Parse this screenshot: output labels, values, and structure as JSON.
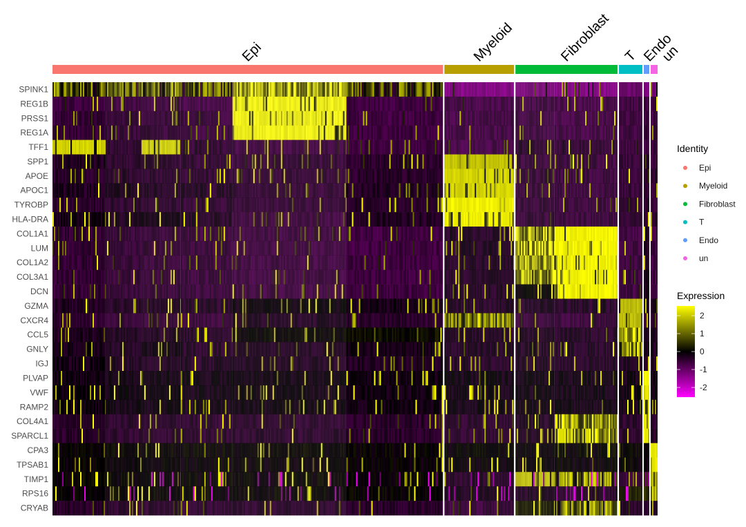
{
  "chart_data": {
    "type": "heatmap",
    "title": "",
    "genes": [
      "SPINK1",
      "REG1B",
      "PRSS1",
      "REG1A",
      "TFF1",
      "SPP1",
      "APOE",
      "APOC1",
      "TYROBP",
      "HLA-DRA",
      "COL1A1",
      "LUM",
      "COL1A2",
      "COL3A1",
      "DCN",
      "GZMA",
      "CXCR4",
      "CCL5",
      "GNLY",
      "IGJ",
      "PLVAP",
      "VWF",
      "RAMP2",
      "COL4A1",
      "SPARCL1",
      "CPA3",
      "TPSAB1",
      "TIMP1",
      "RPS16",
      "CRYAB"
    ],
    "identities": [
      {
        "name": "Epi",
        "color": "#F8766D"
      },
      {
        "name": "Myeloid",
        "color": "#B79F00"
      },
      {
        "name": "Fibroblast",
        "color": "#00BA38"
      },
      {
        "name": "T",
        "color": "#00BFC4"
      },
      {
        "name": "Endo",
        "color": "#619CFF"
      },
      {
        "name": "un",
        "color": "#F564E3"
      }
    ],
    "cell_blocks": [
      {
        "identity": "Epi",
        "cells": 77
      },
      {
        "identity": "Epi",
        "cells": 52
      },
      {
        "identity": "Epi",
        "cells": 57
      },
      {
        "identity": "Epi",
        "cells": 75
      },
      {
        "identity": "Epi",
        "cells": 165
      },
      {
        "identity": "Epi",
        "cells": 140
      },
      {
        "identity": "Myeloid",
        "cells": 101
      },
      {
        "identity": "Fibroblast",
        "cells": 57
      },
      {
        "identity": "Fibroblast",
        "cells": 91
      },
      {
        "identity": "T",
        "cells": 34
      },
      {
        "identity": "Endo",
        "cells": 8
      },
      {
        "identity": "un",
        "cells": 10
      }
    ],
    "mean_expression_by_block": [
      [
        0.8,
        0.6,
        0.8,
        0.6,
        1.6,
        0.7,
        -1.2,
        -1.2,
        -1.2,
        -1.0,
        -1.2,
        -1.2
      ],
      [
        -0.6,
        -0.6,
        -0.6,
        -0.6,
        2.5,
        -0.6,
        -0.6,
        -0.6,
        -0.6,
        -0.6,
        -0.6,
        -0.6
      ],
      [
        -0.5,
        -0.5,
        -0.5,
        -0.5,
        2.5,
        -0.6,
        -0.6,
        -0.6,
        -0.6,
        -0.6,
        -0.6,
        -0.6
      ],
      [
        -0.5,
        -0.5,
        -0.5,
        -0.5,
        2.5,
        -0.6,
        -0.6,
        -0.6,
        -0.6,
        -0.6,
        -0.6,
        -0.6
      ],
      [
        2.2,
        -0.4,
        2.2,
        -0.4,
        -0.6,
        -0.6,
        -0.6,
        -0.4,
        -0.4,
        -0.6,
        -0.6,
        -0.6
      ],
      [
        -0.3,
        -0.4,
        -0.4,
        -0.4,
        -0.5,
        -0.4,
        2.0,
        -0.5,
        -0.5,
        -0.5,
        -0.5,
        -0.5
      ],
      [
        -0.4,
        -0.4,
        -0.4,
        -0.4,
        -0.5,
        -0.4,
        2.2,
        -0.5,
        -0.5,
        -0.5,
        -0.5,
        -0.5
      ],
      [
        -0.3,
        -0.3,
        -0.3,
        -0.3,
        -0.5,
        -0.3,
        2.2,
        -0.5,
        -0.5,
        -0.5,
        -0.5,
        -0.5
      ],
      [
        -0.4,
        -0.4,
        -0.4,
        -0.4,
        -0.5,
        -0.4,
        2.5,
        -0.5,
        -0.5,
        -0.4,
        -0.5,
        -0.5
      ],
      [
        -0.2,
        -0.3,
        -0.2,
        -0.3,
        -0.6,
        -0.3,
        2.5,
        -0.5,
        -0.5,
        -0.4,
        -0.5,
        -0.5
      ],
      [
        -0.5,
        -0.5,
        -0.5,
        -0.5,
        -0.6,
        -0.6,
        -0.3,
        1.5,
        2.5,
        -0.6,
        -0.3,
        -0.6
      ],
      [
        -0.5,
        -0.5,
        -0.5,
        -0.5,
        -0.6,
        -0.6,
        -0.3,
        1.5,
        2.5,
        -0.6,
        -0.3,
        -0.6
      ],
      [
        -0.5,
        -0.5,
        -0.5,
        -0.5,
        -0.6,
        -0.6,
        -0.3,
        1.6,
        2.5,
        -0.6,
        -0.3,
        -0.6
      ],
      [
        -0.5,
        -0.5,
        -0.5,
        -0.5,
        -0.6,
        -0.6,
        -0.3,
        1.5,
        2.5,
        -0.6,
        -0.3,
        -0.6
      ],
      [
        -0.5,
        -0.5,
        -0.5,
        -0.5,
        -0.6,
        -0.6,
        -0.3,
        0.0,
        2.5,
        -0.6,
        -0.3,
        -0.6
      ],
      [
        -0.3,
        -0.3,
        -0.3,
        -0.3,
        -0.1,
        -0.2,
        -0.3,
        -0.3,
        -0.3,
        2.0,
        -0.3,
        -0.3
      ],
      [
        -0.5,
        -0.5,
        -0.5,
        -0.5,
        -0.3,
        -0.4,
        1.2,
        -0.5,
        -0.5,
        2.0,
        -0.5,
        -0.5
      ],
      [
        -0.3,
        -0.3,
        -0.3,
        -0.3,
        0.0,
        0.1,
        -0.3,
        -0.3,
        -0.3,
        1.6,
        -0.3,
        -0.3
      ],
      [
        -0.2,
        -0.3,
        -0.2,
        -0.3,
        -0.3,
        -0.2,
        -0.3,
        -0.3,
        -0.3,
        1.2,
        -0.3,
        -0.3
      ],
      [
        -0.2,
        -0.3,
        -0.3,
        -0.3,
        -0.3,
        -0.3,
        -0.3,
        -0.3,
        -0.3,
        -0.3,
        -0.3,
        -0.3
      ],
      [
        -0.15,
        -0.15,
        -0.15,
        -0.15,
        -0.15,
        -0.15,
        -0.15,
        -0.15,
        -0.15,
        -0.15,
        2.5,
        -0.15
      ],
      [
        -0.15,
        -0.15,
        -0.15,
        -0.15,
        -0.15,
        -0.15,
        -0.15,
        -0.15,
        -0.15,
        -0.15,
        2.5,
        -0.15
      ],
      [
        -0.15,
        -0.15,
        -0.15,
        -0.15,
        -0.15,
        -0.15,
        -0.15,
        -0.15,
        -0.15,
        -0.15,
        2.5,
        -0.15
      ],
      [
        -0.4,
        -0.4,
        -0.4,
        -0.4,
        -0.4,
        -0.4,
        -0.4,
        -0.3,
        1.5,
        -0.4,
        2.5,
        -0.4
      ],
      [
        -0.4,
        -0.4,
        -0.4,
        -0.4,
        -0.4,
        -0.4,
        -0.4,
        -0.3,
        1.5,
        -0.4,
        2.5,
        -0.4
      ],
      [
        0.0,
        0.0,
        0.0,
        0.0,
        0.0,
        0.0,
        0.0,
        0.0,
        0.0,
        0.0,
        0.0,
        2.5
      ],
      [
        -0.05,
        -0.05,
        -0.05,
        -0.05,
        -0.05,
        -0.05,
        -0.05,
        -0.05,
        -0.05,
        -0.05,
        -0.05,
        2.5
      ],
      [
        0.0,
        0.0,
        0.0,
        0.0,
        0.0,
        0.0,
        -0.3,
        2.0,
        1.0,
        -0.6,
        0.5,
        0.8
      ],
      [
        0.0,
        0.0,
        0.0,
        0.0,
        0.0,
        0.0,
        -0.2,
        -0.3,
        -0.3,
        0.3,
        0.5,
        1.0
      ],
      [
        -0.4,
        -0.4,
        -0.4,
        -0.4,
        -0.4,
        -0.4,
        -0.5,
        0.3,
        1.0,
        -0.4,
        -0.4,
        -0.4
      ]
    ],
    "legend_identity_title": "Identity",
    "legend_expression_title": "Expression",
    "color_scale": {
      "low": "#FF00FF",
      "mid": "#000000",
      "high": "#FFFF00",
      "range": [
        -2.5,
        2.5
      ]
    },
    "colorbar_ticks": [
      "2",
      "1",
      "0",
      "-1",
      "-2"
    ],
    "legend_placement": "right"
  }
}
